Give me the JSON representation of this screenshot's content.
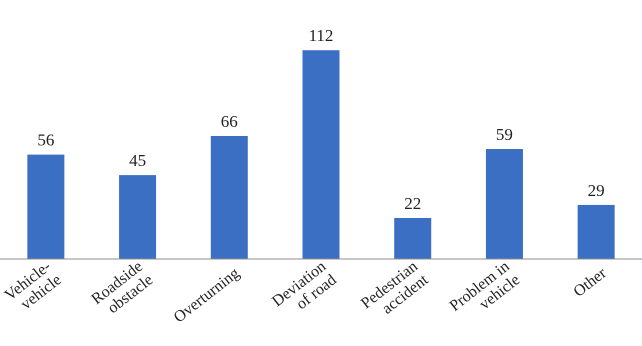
{
  "chart_data": {
    "type": "bar",
    "categories": [
      [
        "Vehicle-",
        "vehicle"
      ],
      [
        "Roadside",
        "obstacle"
      ],
      [
        "Overturning"
      ],
      [
        "Deviation",
        "of road"
      ],
      [
        "Pedestrian",
        "accident"
      ],
      [
        "Problem in",
        "vehicle"
      ],
      [
        "Other"
      ]
    ],
    "values": [
      56,
      45,
      66,
      112,
      22,
      59,
      29
    ],
    "data_labels": [
      "56",
      "45",
      "66",
      "112",
      "22",
      "59",
      "29"
    ],
    "title": "",
    "xlabel": "",
    "ylabel": "",
    "ylim": [
      0,
      125
    ],
    "grid": false,
    "legend": "none",
    "colors": {
      "bar": "#3A6FC4",
      "axis": "#8C8C8C",
      "text": "#222222"
    }
  }
}
